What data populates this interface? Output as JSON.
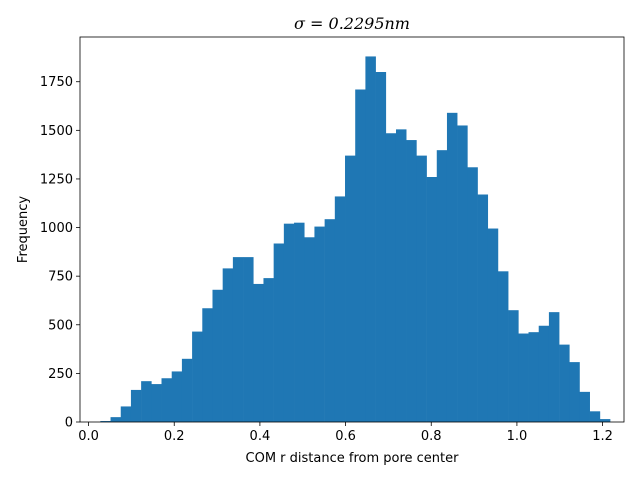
{
  "chart_data": {
    "type": "bar",
    "title": "σ = 0.2295nm",
    "xlabel": "COM r distance from pore center",
    "ylabel": "Frequency",
    "xlim": [
      -0.02,
      1.25
    ],
    "ylim": [
      0,
      1980
    ],
    "xticks": [
      0.0,
      0.2,
      0.4,
      0.6,
      0.8,
      1.0,
      1.2
    ],
    "xtick_labels": [
      "0.0",
      "0.2",
      "0.4",
      "0.6",
      "0.8",
      "1.0",
      "1.2"
    ],
    "yticks": [
      0,
      250,
      500,
      750,
      1000,
      1250,
      1500,
      1750
    ],
    "ytick_labels": [
      "0",
      "250",
      "500",
      "750",
      "1000",
      "1250",
      "1500",
      "1750"
    ],
    "grid": false,
    "bar_color": "#1f77b4",
    "bin_edges": [
      0.0275,
      0.0513,
      0.0751,
      0.0989,
      0.1227,
      0.1465,
      0.1703,
      0.1941,
      0.2179,
      0.2417,
      0.2655,
      0.2893,
      0.3131,
      0.3369,
      0.3607,
      0.3845,
      0.4083,
      0.4321,
      0.4559,
      0.4797,
      0.5035,
      0.5273,
      0.5511,
      0.5749,
      0.5987,
      0.6225,
      0.6463,
      0.6701,
      0.6939,
      0.7177,
      0.7415,
      0.7653,
      0.7891,
      0.8129,
      0.8367,
      0.8605,
      0.8843,
      0.9081,
      0.9319,
      0.9557,
      0.9795,
      1.0033,
      1.0271,
      1.0509,
      1.0747,
      1.0985,
      1.1223,
      1.1461,
      1.1699,
      1.1937,
      1.2175
    ],
    "values": [
      5,
      25,
      80,
      165,
      210,
      195,
      225,
      260,
      325,
      465,
      585,
      680,
      790,
      848,
      848,
      710,
      740,
      918,
      1020,
      1025,
      950,
      1005,
      1043,
      1160,
      1370,
      1710,
      1880,
      1800,
      1485,
      1505,
      1450,
      1370,
      1260,
      1398,
      1590,
      1525,
      1310,
      1170,
      995,
      775,
      575,
      455,
      462,
      495,
      565,
      398,
      308,
      155,
      55,
      15
    ]
  }
}
